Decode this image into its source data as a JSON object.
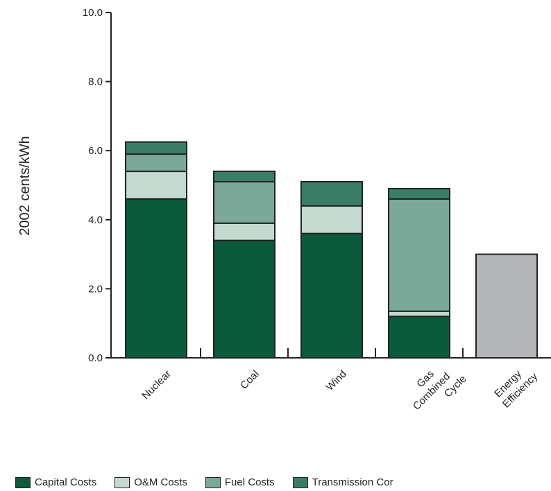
{
  "chart_data": {
    "type": "bar",
    "stacked": true,
    "title": "",
    "xlabel": "",
    "ylabel": "2002 cents/kWh",
    "ylim": [
      0,
      10
    ],
    "yticks": [
      "0.0",
      "2.0",
      "4.0",
      "6.0",
      "8.0",
      "10.0"
    ],
    "categories": [
      [
        "Nuclear"
      ],
      [
        "Coal"
      ],
      [
        "Wind"
      ],
      [
        "Gas",
        "Combined",
        "Cycle"
      ],
      [
        "Energy",
        "Efficiency"
      ]
    ],
    "series": [
      {
        "name": "Capital Costs",
        "color": "#0b5a3c",
        "values": [
          4.6,
          3.4,
          3.6,
          1.2,
          0
        ]
      },
      {
        "name": "O&M Costs",
        "color": "#c4d9cf",
        "values": [
          0.8,
          0.5,
          0.8,
          0.15,
          0
        ]
      },
      {
        "name": "Fuel Costs",
        "color": "#7ba898",
        "values": [
          0.5,
          1.2,
          0,
          3.25,
          0
        ]
      },
      {
        "name": "Transmission Cor",
        "color": "#3a7d66",
        "values": [
          0.35,
          0.3,
          0.7,
          0.3,
          0
        ]
      },
      {
        "name": "",
        "color": "#b4b5b9",
        "values": [
          0,
          0,
          0,
          0,
          3.0
        ]
      }
    ],
    "grid": false,
    "legend_position": "bottom"
  }
}
